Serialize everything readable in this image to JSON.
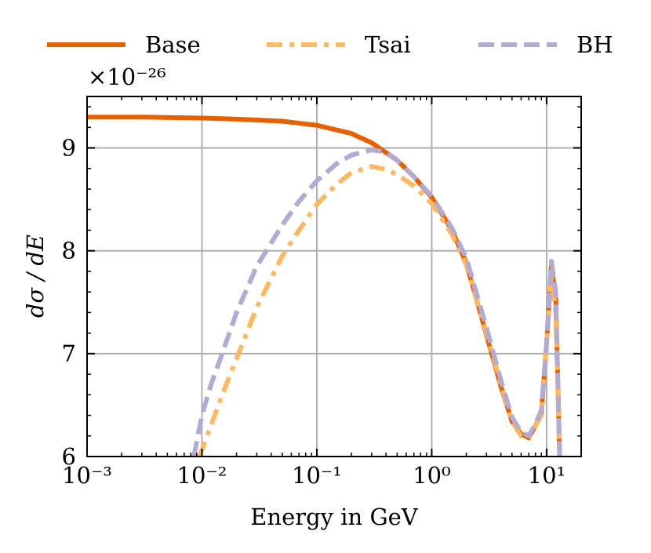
{
  "chart_data": {
    "type": "line",
    "title": "",
    "xlabel": "Energy in GeV",
    "ylabel": "dσ / dE",
    "xscale": "log",
    "xlim": [
      0.001,
      20
    ],
    "ylim": [
      6,
      9.5
    ],
    "y_multiplier_label": "×10⁻²⁶",
    "grid": true,
    "legend_position": "top, outside plot, horizontal",
    "x_ticks": [
      {
        "value": 0.001,
        "label": "10⁻³"
      },
      {
        "value": 0.01,
        "label": "10⁻²"
      },
      {
        "value": 0.1,
        "label": "10⁻¹"
      },
      {
        "value": 1,
        "label": "10⁰"
      },
      {
        "value": 10,
        "label": "10¹"
      }
    ],
    "y_ticks": [
      {
        "value": 6,
        "label": "6"
      },
      {
        "value": 7,
        "label": "7"
      },
      {
        "value": 8,
        "label": "8"
      },
      {
        "value": 9,
        "label": "9"
      }
    ],
    "series": [
      {
        "name": "Base",
        "color": "#e66101",
        "style": "solid",
        "x": [
          0.001,
          0.003,
          0.01,
          0.02,
          0.05,
          0.1,
          0.2,
          0.3,
          0.5,
          0.7,
          1.0,
          1.5,
          2.0,
          3.0,
          4.0,
          5.0,
          6.0,
          7.0,
          8.0,
          9.0,
          10.0,
          11.0,
          12.0,
          13.0
        ],
        "y": [
          9.3,
          9.3,
          9.29,
          9.28,
          9.26,
          9.22,
          9.14,
          9.05,
          8.88,
          8.72,
          8.52,
          8.2,
          7.88,
          7.18,
          6.68,
          6.34,
          6.22,
          6.18,
          6.3,
          6.42,
          7.1,
          7.85,
          7.55,
          6.0
        ]
      },
      {
        "name": "Tsai",
        "color": "#fdb863",
        "style": "dashdot",
        "x": [
          0.0095,
          0.012,
          0.015,
          0.02,
          0.03,
          0.05,
          0.07,
          0.1,
          0.15,
          0.2,
          0.3,
          0.4,
          0.5,
          0.7,
          1.0,
          1.5,
          2.0,
          3.0,
          4.0,
          5.0,
          6.0,
          7.0,
          8.0,
          9.0,
          10.0,
          11.0,
          12.0,
          13.0
        ],
        "y": [
          6.0,
          6.3,
          6.6,
          6.95,
          7.45,
          7.95,
          8.2,
          8.45,
          8.65,
          8.76,
          8.82,
          8.79,
          8.74,
          8.63,
          8.46,
          8.16,
          7.86,
          7.2,
          6.7,
          6.34,
          6.2,
          6.18,
          6.3,
          6.4,
          7.1,
          7.8,
          7.4,
          6.0
        ]
      },
      {
        "name": "BH",
        "color": "#b2abd2",
        "style": "dashed",
        "x": [
          0.0085,
          0.01,
          0.012,
          0.015,
          0.02,
          0.03,
          0.05,
          0.07,
          0.1,
          0.15,
          0.2,
          0.3,
          0.4,
          0.5,
          0.7,
          1.0,
          1.5,
          2.0,
          3.0,
          4.0,
          5.0,
          6.0,
          7.0,
          8.0,
          9.0,
          10.0,
          11.0,
          12.0,
          13.0
        ],
        "y": [
          6.0,
          6.4,
          6.7,
          7.0,
          7.4,
          7.85,
          8.25,
          8.48,
          8.68,
          8.85,
          8.93,
          8.98,
          8.96,
          8.88,
          8.72,
          8.53,
          8.22,
          7.93,
          7.25,
          6.74,
          6.38,
          6.24,
          6.2,
          6.32,
          6.45,
          7.1,
          7.9,
          7.6,
          6.0
        ]
      }
    ]
  }
}
